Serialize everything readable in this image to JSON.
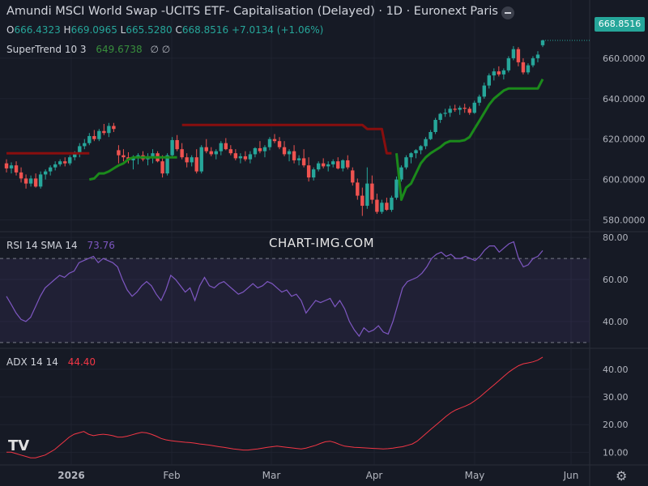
{
  "header": {
    "title": "Amundi MSCI World Swap -UCITS ETF- Capitalisation (Delayed) · 1D · Euronext Paris"
  },
  "ohlc": {
    "open_key": "O",
    "open": "666.4323",
    "high_key": "H",
    "high": "669.0965",
    "low_key": "L",
    "low": "665.5280",
    "close_key": "C",
    "close": "668.8516",
    "change": "+7.0134 (+1.06%)"
  },
  "supertrend_legend": {
    "name": "SuperTrend",
    "params": "10 3",
    "value": "649.6738",
    "icons": "∅ ∅"
  },
  "rsi_legend": {
    "name": "RSI",
    "params": "14 SMA 14",
    "value": "73.76"
  },
  "adx_legend": {
    "name": "ADX",
    "params": "14 14",
    "value": "44.40"
  },
  "watermark": "CHART-IMG.COM",
  "last_price_tag": "668.8516",
  "colors": {
    "up": "#26a69a",
    "down": "#ef5350",
    "supertrend_up": "#1b8a1b",
    "supertrend_down": "#880e0e",
    "rsi": "#7e57c2",
    "adx": "#f23645"
  },
  "icons": [
    "collapse-icon",
    "tradingview-logo-icon",
    "gear-icon"
  ],
  "chart_data": [
    {
      "type": "candlestick",
      "title": "Amundi MSCI World Swap -UCITS ETF- Capitalisation (Delayed) · 1D · Euronext Paris",
      "x_tick_labels": [
        "2026",
        "Feb",
        "Mar",
        "Apr",
        "May",
        "Jun"
      ],
      "y_tick_labels": [
        "580.0000",
        "600.0000",
        "620.0000",
        "640.0000",
        "660.0000"
      ],
      "ylim": [
        575,
        680
      ],
      "candles": [
        {
          "o": 608.0,
          "h": 610.0,
          "l": 603.5,
          "c": 605.5
        },
        {
          "o": 605.5,
          "h": 608.5,
          "l": 603.0,
          "c": 607.0
        },
        {
          "o": 607.0,
          "h": 609.0,
          "l": 602.0,
          "c": 603.5
        },
        {
          "o": 603.5,
          "h": 606.0,
          "l": 598.5,
          "c": 600.5
        },
        {
          "o": 600.5,
          "h": 602.5,
          "l": 595.5,
          "c": 598.0
        },
        {
          "o": 598.0,
          "h": 602.0,
          "l": 596.5,
          "c": 600.5
        },
        {
          "o": 600.5,
          "h": 603.0,
          "l": 596.0,
          "c": 596.5
        },
        {
          "o": 596.5,
          "h": 604.0,
          "l": 595.5,
          "c": 602.5
        },
        {
          "o": 602.5,
          "h": 605.0,
          "l": 600.0,
          "c": 604.0
        },
        {
          "o": 604.0,
          "h": 607.0,
          "l": 602.0,
          "c": 606.0
        },
        {
          "o": 606.0,
          "h": 609.0,
          "l": 604.5,
          "c": 607.5
        },
        {
          "o": 607.5,
          "h": 610.0,
          "l": 606.5,
          "c": 609.0
        },
        {
          "o": 609.0,
          "h": 611.0,
          "l": 606.5,
          "c": 608.0
        },
        {
          "o": 608.0,
          "h": 612.0,
          "l": 607.0,
          "c": 611.0
        },
        {
          "o": 611.0,
          "h": 614.0,
          "l": 609.5,
          "c": 612.5
        },
        {
          "o": 612.5,
          "h": 618.0,
          "l": 611.0,
          "c": 616.5
        },
        {
          "o": 616.5,
          "h": 620.0,
          "l": 615.0,
          "c": 618.0
        },
        {
          "o": 618.0,
          "h": 623.0,
          "l": 617.0,
          "c": 621.5
        },
        {
          "o": 621.5,
          "h": 624.5,
          "l": 619.0,
          "c": 620.0
        },
        {
          "o": 620.0,
          "h": 625.0,
          "l": 619.0,
          "c": 624.0
        },
        {
          "o": 624.0,
          "h": 627.5,
          "l": 622.0,
          "c": 623.0
        },
        {
          "o": 623.0,
          "h": 628.0,
          "l": 621.0,
          "c": 626.5
        },
        {
          "o": 626.5,
          "h": 628.0,
          "l": 623.5,
          "c": 625.0
        },
        {
          "o": 614.5,
          "h": 617.0,
          "l": 608.0,
          "c": 612.0
        },
        {
          "o": 612.0,
          "h": 615.0,
          "l": 609.0,
          "c": 611.0
        },
        {
          "o": 611.0,
          "h": 613.5,
          "l": 608.0,
          "c": 609.5
        },
        {
          "o": 609.5,
          "h": 612.0,
          "l": 605.0,
          "c": 610.5
        },
        {
          "o": 610.5,
          "h": 613.0,
          "l": 607.5,
          "c": 612.0
        },
        {
          "o": 612.0,
          "h": 614.0,
          "l": 609.0,
          "c": 610.0
        },
        {
          "o": 610.0,
          "h": 613.0,
          "l": 607.0,
          "c": 611.5
        },
        {
          "o": 611.5,
          "h": 615.0,
          "l": 608.0,
          "c": 613.0
        },
        {
          "o": 613.0,
          "h": 614.0,
          "l": 608.5,
          "c": 609.0
        },
        {
          "o": 609.0,
          "h": 612.0,
          "l": 601.0,
          "c": 603.0
        },
        {
          "o": 603.0,
          "h": 613.0,
          "l": 602.0,
          "c": 612.0
        },
        {
          "o": 612.0,
          "h": 621.0,
          "l": 611.0,
          "c": 619.5
        },
        {
          "o": 619.5,
          "h": 622.0,
          "l": 614.0,
          "c": 615.0
        },
        {
          "o": 615.0,
          "h": 618.0,
          "l": 610.0,
          "c": 611.0
        },
        {
          "o": 611.0,
          "h": 613.0,
          "l": 606.0,
          "c": 608.5
        },
        {
          "o": 608.5,
          "h": 612.0,
          "l": 606.5,
          "c": 611.0
        },
        {
          "o": 611.0,
          "h": 615.0,
          "l": 603.0,
          "c": 604.0
        },
        {
          "o": 604.0,
          "h": 617.0,
          "l": 603.0,
          "c": 616.0
        },
        {
          "o": 616.0,
          "h": 620.0,
          "l": 613.0,
          "c": 614.0
        },
        {
          "o": 614.0,
          "h": 616.0,
          "l": 611.5,
          "c": 612.5
        },
        {
          "o": 612.5,
          "h": 615.0,
          "l": 610.0,
          "c": 614.0
        },
        {
          "o": 614.0,
          "h": 619.0,
          "l": 612.0,
          "c": 618.0
        },
        {
          "o": 618.0,
          "h": 620.5,
          "l": 614.5,
          "c": 615.0
        },
        {
          "o": 615.0,
          "h": 617.0,
          "l": 612.0,
          "c": 613.0
        },
        {
          "o": 613.0,
          "h": 615.0,
          "l": 609.5,
          "c": 610.5
        },
        {
          "o": 610.5,
          "h": 613.0,
          "l": 608.0,
          "c": 611.5
        },
        {
          "o": 611.5,
          "h": 614.0,
          "l": 609.0,
          "c": 610.0
        },
        {
          "o": 610.0,
          "h": 614.0,
          "l": 608.0,
          "c": 612.5
        },
        {
          "o": 612.5,
          "h": 616.0,
          "l": 611.0,
          "c": 615.5
        },
        {
          "o": 615.5,
          "h": 619.0,
          "l": 613.0,
          "c": 614.0
        },
        {
          "o": 614.0,
          "h": 617.0,
          "l": 611.0,
          "c": 616.0
        },
        {
          "o": 616.0,
          "h": 621.0,
          "l": 614.5,
          "c": 620.0
        },
        {
          "o": 620.0,
          "h": 622.5,
          "l": 618.0,
          "c": 619.0
        },
        {
          "o": 619.0,
          "h": 621.0,
          "l": 615.0,
          "c": 616.0
        },
        {
          "o": 616.0,
          "h": 619.0,
          "l": 611.5,
          "c": 612.5
        },
        {
          "o": 612.5,
          "h": 615.0,
          "l": 609.0,
          "c": 614.0
        },
        {
          "o": 614.0,
          "h": 617.0,
          "l": 608.0,
          "c": 609.5
        },
        {
          "o": 609.5,
          "h": 612.0,
          "l": 607.0,
          "c": 610.5
        },
        {
          "o": 610.5,
          "h": 615.0,
          "l": 606.0,
          "c": 607.0
        },
        {
          "o": 607.0,
          "h": 611.0,
          "l": 599.0,
          "c": 601.0
        },
        {
          "o": 601.0,
          "h": 606.0,
          "l": 599.5,
          "c": 605.0
        },
        {
          "o": 605.0,
          "h": 609.0,
          "l": 604.0,
          "c": 608.0
        },
        {
          "o": 608.0,
          "h": 610.5,
          "l": 605.5,
          "c": 606.5
        },
        {
          "o": 606.5,
          "h": 609.0,
          "l": 604.0,
          "c": 607.5
        },
        {
          "o": 607.5,
          "h": 610.0,
          "l": 606.0,
          "c": 609.0
        },
        {
          "o": 609.0,
          "h": 611.0,
          "l": 605.0,
          "c": 605.5
        },
        {
          "o": 605.5,
          "h": 610.0,
          "l": 604.0,
          "c": 609.5
        },
        {
          "o": 609.5,
          "h": 612.0,
          "l": 605.0,
          "c": 606.0
        },
        {
          "o": 604.5,
          "h": 606.0,
          "l": 597.0,
          "c": 598.5
        },
        {
          "o": 598.5,
          "h": 600.5,
          "l": 590.0,
          "c": 592.0
        },
        {
          "o": 592.0,
          "h": 596.0,
          "l": 582.0,
          "c": 587.0
        },
        {
          "o": 587.0,
          "h": 606.0,
          "l": 585.5,
          "c": 598.0
        },
        {
          "o": 598.0,
          "h": 602.0,
          "l": 588.0,
          "c": 590.0
        },
        {
          "o": 590.0,
          "h": 593.0,
          "l": 583.0,
          "c": 584.0
        },
        {
          "o": 584.0,
          "h": 590.0,
          "l": 583.0,
          "c": 588.5
        },
        {
          "o": 588.5,
          "h": 591.0,
          "l": 584.5,
          "c": 585.0
        },
        {
          "o": 585.0,
          "h": 592.0,
          "l": 584.0,
          "c": 591.0
        },
        {
          "o": 591.0,
          "h": 601.5,
          "l": 590.0,
          "c": 600.0
        },
        {
          "o": 600.0,
          "h": 607.0,
          "l": 599.0,
          "c": 606.0
        },
        {
          "o": 606.0,
          "h": 612.0,
          "l": 605.0,
          "c": 611.0
        },
        {
          "o": 611.0,
          "h": 613.5,
          "l": 608.0,
          "c": 613.0
        },
        {
          "o": 613.0,
          "h": 615.0,
          "l": 610.5,
          "c": 614.5
        },
        {
          "o": 614.5,
          "h": 617.0,
          "l": 612.5,
          "c": 616.5
        },
        {
          "o": 616.5,
          "h": 621.0,
          "l": 615.0,
          "c": 620.0
        },
        {
          "o": 620.0,
          "h": 624.5,
          "l": 619.5,
          "c": 623.5
        },
        {
          "o": 623.5,
          "h": 630.5,
          "l": 622.5,
          "c": 629.5
        },
        {
          "o": 629.5,
          "h": 633.0,
          "l": 628.0,
          "c": 632.5
        },
        {
          "o": 632.5,
          "h": 635.0,
          "l": 631.0,
          "c": 633.0
        },
        {
          "o": 633.0,
          "h": 636.5,
          "l": 631.0,
          "c": 635.0
        },
        {
          "o": 635.0,
          "h": 637.0,
          "l": 633.5,
          "c": 634.5
        },
        {
          "o": 634.5,
          "h": 636.5,
          "l": 632.0,
          "c": 635.5
        },
        {
          "o": 635.5,
          "h": 637.5,
          "l": 633.0,
          "c": 635.0
        },
        {
          "o": 635.0,
          "h": 636.0,
          "l": 632.0,
          "c": 633.0
        },
        {
          "o": 633.0,
          "h": 639.0,
          "l": 632.5,
          "c": 638.0
        },
        {
          "o": 638.0,
          "h": 642.0,
          "l": 636.5,
          "c": 641.0
        },
        {
          "o": 641.0,
          "h": 648.0,
          "l": 640.0,
          "c": 646.5
        },
        {
          "o": 646.5,
          "h": 652.5,
          "l": 645.0,
          "c": 651.5
        },
        {
          "o": 651.5,
          "h": 655.0,
          "l": 649.0,
          "c": 653.5
        },
        {
          "o": 653.5,
          "h": 656.0,
          "l": 651.0,
          "c": 652.0
        },
        {
          "o": 652.0,
          "h": 655.0,
          "l": 649.5,
          "c": 654.0
        },
        {
          "o": 654.0,
          "h": 661.0,
          "l": 653.0,
          "c": 660.0
        },
        {
          "o": 660.0,
          "h": 666.0,
          "l": 659.0,
          "c": 664.5
        },
        {
          "o": 664.5,
          "h": 665.5,
          "l": 656.0,
          "c": 658.0
        },
        {
          "o": 658.0,
          "h": 660.0,
          "l": 652.0,
          "c": 653.0
        },
        {
          "o": 653.0,
          "h": 657.5,
          "l": 652.0,
          "c": 656.5
        },
        {
          "o": 656.5,
          "h": 661.0,
          "l": 655.5,
          "c": 660.0
        },
        {
          "o": 660.0,
          "h": 663.5,
          "l": 658.0,
          "c": 661.8
        },
        {
          "o": 666.4323,
          "h": 669.0965,
          "l": 665.528,
          "c": 668.8516
        }
      ],
      "supertrend": [
        {
          "from": 0,
          "to": 17,
          "side": "down",
          "values": [
            613,
            613,
            613,
            613,
            613,
            613,
            613,
            613,
            613,
            613,
            613,
            613,
            613,
            613,
            613,
            613,
            613,
            613
          ]
        },
        {
          "from": 17,
          "to": 36,
          "side": "up",
          "values": [
            600,
            600.5,
            603,
            603,
            604,
            605.5,
            607,
            608,
            610,
            611,
            611,
            611,
            611,
            611,
            611,
            611,
            611,
            611,
            611
          ]
        },
        {
          "from": 36,
          "to": 80,
          "side": "down",
          "values": [
            627,
            627,
            627,
            627,
            627,
            627,
            627,
            627,
            627,
            627,
            627,
            627,
            627,
            627,
            627,
            627,
            627,
            627,
            627,
            627,
            627,
            627,
            627,
            627,
            627,
            627,
            627,
            627,
            627,
            627,
            627,
            627,
            627,
            627,
            627,
            627,
            627,
            627,
            625,
            625,
            625,
            625,
            613,
            613
          ]
        },
        {
          "from": 80,
          "to": 111,
          "side": "up",
          "values": [
            613,
            590,
            596,
            598,
            603,
            608,
            611,
            613,
            614.5,
            616,
            618,
            619,
            619,
            619,
            619.5,
            621,
            625,
            629,
            633,
            637,
            640,
            642,
            644,
            645,
            645,
            645,
            645,
            645,
            645,
            645,
            649.6738
          ]
        }
      ],
      "series": [
        {
          "name": "SuperTrend",
          "last": "649.6738"
        }
      ]
    },
    {
      "type": "line",
      "name": "RSI",
      "title": "RSI 14 SMA 14",
      "y_tick_labels": [
        "40.00",
        "60.00",
        "80.00"
      ],
      "ylim": [
        28,
        82
      ],
      "bands": [
        30,
        70
      ],
      "values": [
        52,
        48,
        44,
        41,
        40,
        42,
        47,
        52,
        56,
        58,
        60,
        62,
        61,
        63,
        64,
        68,
        69,
        70,
        71,
        68,
        70,
        69,
        68,
        66,
        60,
        55,
        52,
        54,
        57,
        59,
        57,
        53,
        50,
        55,
        62,
        60,
        57,
        54,
        56,
        50,
        57,
        61,
        57,
        56,
        58,
        59,
        57,
        55,
        53,
        54,
        56,
        58,
        56,
        57,
        59,
        58,
        56,
        54,
        55,
        52,
        53,
        50,
        44,
        47,
        50,
        49,
        50,
        51,
        47,
        50,
        46,
        40,
        36,
        33,
        37,
        35,
        36,
        38,
        35,
        34,
        40,
        48,
        56,
        59,
        60,
        61,
        63,
        66,
        70,
        72,
        73,
        71,
        72,
        70,
        70,
        71,
        70,
        69,
        71,
        74,
        76,
        76,
        73,
        75,
        77,
        78,
        70,
        66,
        67,
        70,
        71,
        73.76
      ]
    },
    {
      "type": "line",
      "name": "ADX",
      "title": "ADX 14 14",
      "y_tick_labels": [
        "10.00",
        "20.00",
        "30.00",
        "40.00"
      ],
      "ylim": [
        6,
        47
      ],
      "values": [
        10,
        10,
        9.5,
        9,
        8.5,
        8,
        8,
        8.5,
        9,
        10,
        11,
        12.5,
        14,
        15.5,
        16.5,
        17,
        17.5,
        16.5,
        16,
        16.3,
        16.5,
        16.3,
        16,
        15.5,
        15.5,
        15.8,
        16.3,
        16.8,
        17.2,
        17,
        16.5,
        15.8,
        15,
        14.5,
        14.2,
        14,
        13.8,
        13.6,
        13.5,
        13.3,
        13,
        12.8,
        12.6,
        12.3,
        12,
        11.8,
        11.5,
        11.2,
        11,
        10.8,
        10.8,
        11,
        11.2,
        11.5,
        11.8,
        12,
        12.2,
        12,
        11.8,
        11.6,
        11.4,
        11.2,
        11.5,
        12,
        12.5,
        13.2,
        13.8,
        14,
        13.5,
        12.8,
        12.2,
        12,
        11.8,
        11.7,
        11.6,
        11.5,
        11.4,
        11.3,
        11.2,
        11.3,
        11.5,
        11.8,
        12,
        12.5,
        13,
        14,
        15.5,
        17,
        18.5,
        20,
        21.5,
        23,
        24.3,
        25.3,
        26,
        26.7,
        27.5,
        28.7,
        30,
        31.5,
        33,
        34.5,
        36,
        37.5,
        39,
        40.2,
        41.3,
        42,
        42.3,
        42.7,
        43.3,
        44.4
      ]
    }
  ]
}
